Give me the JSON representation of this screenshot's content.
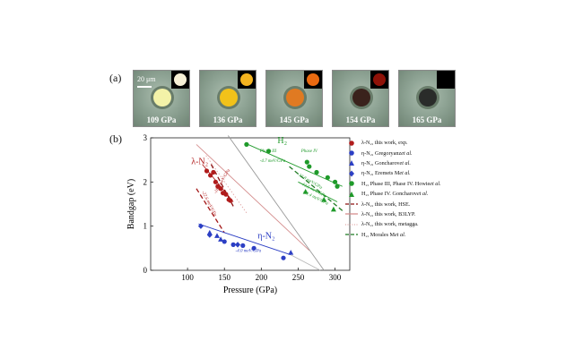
{
  "panel_a": {
    "label": "(a)",
    "scale_label": "20 μm",
    "images": [
      {
        "pressure": "109 GPa",
        "disk_color": "#f3f2a8",
        "glow_color": "#f6f0d6"
      },
      {
        "pressure": "136 GPa",
        "disk_color": "#f2c21a",
        "glow_color": "#f5b51f"
      },
      {
        "pressure": "145 GPa",
        "disk_color": "#e07a22",
        "glow_color": "#ea6a10"
      },
      {
        "pressure": "154 GPa",
        "disk_color": "#3a221c",
        "glow_color": "#8e1208"
      },
      {
        "pressure": "165 GPa",
        "disk_color": "#2a2c2a",
        "glow_color": "#000000"
      }
    ]
  },
  "panel_b": {
    "label": "(b)"
  },
  "chart_data": {
    "type": "scatter",
    "xlabel": "Pressure (GPa)",
    "ylabel": "Bandgap (eV)",
    "xlim": [
      50,
      320
    ],
    "ylim": [
      0,
      3
    ],
    "xticks": [
      "100",
      "150",
      "200",
      "250",
      "300"
    ],
    "yticks": [
      "0",
      "1",
      "2",
      "3"
    ],
    "series": [
      {
        "name": "λ-N₂, this work, exp.",
        "color": "#b01c1c",
        "marker": "circle",
        "legend_italic": "",
        "points": [
          [
            126,
            2.25
          ],
          [
            131,
            2.15
          ],
          [
            135,
            2.22
          ],
          [
            138,
            2.0
          ],
          [
            141,
            1.9
          ],
          [
            145,
            1.85
          ],
          [
            148,
            1.75
          ],
          [
            152,
            1.72
          ],
          [
            156,
            1.6
          ],
          [
            158,
            1.58
          ]
        ]
      },
      {
        "name": "η-N₂, Gregoryanz ",
        "color": "#2c3fc4",
        "marker": "circle",
        "legend_italic": "et al.",
        "points": [
          [
            150,
            0.65
          ],
          [
            162,
            0.58
          ],
          [
            175,
            0.56
          ],
          [
            190,
            0.5
          ],
          [
            230,
            0.28
          ]
        ]
      },
      {
        "name": "η-N₂, Goncharov ",
        "color": "#2c3fc4",
        "marker": "triangle",
        "legend_italic": "et al.",
        "points": [
          [
            130,
            0.85
          ],
          [
            140,
            0.78
          ],
          [
            145,
            0.7
          ],
          [
            240,
            0.4
          ]
        ]
      },
      {
        "name": "η-N₂, Eremets M ",
        "color": "#2c3fc4",
        "marker": "diamond",
        "legend_italic": "et al.",
        "points": [
          [
            118,
            1.0
          ],
          [
            130,
            0.8
          ],
          [
            168,
            0.58
          ]
        ]
      },
      {
        "name": "H₂, Phase III, Phase IV. Howie ",
        "color": "#1f9a2a",
        "marker": "circle",
        "legend_italic": "et al.",
        "points": [
          [
            180,
            2.85
          ],
          [
            210,
            2.7
          ],
          [
            262,
            2.45
          ],
          [
            265,
            2.35
          ],
          [
            275,
            2.22
          ],
          [
            290,
            2.1
          ],
          [
            300,
            2.0
          ],
          [
            303,
            1.9
          ]
        ]
      },
      {
        "name": "H₂, Phase IV. Goncharov ",
        "color": "#1f9a2a",
        "marker": "triangle",
        "legend_italic": "et al.",
        "points": [
          [
            260,
            1.78
          ],
          [
            285,
            1.6
          ],
          [
            298,
            1.38
          ]
        ]
      }
    ],
    "lines": [
      {
        "name": "λ-N₂, this work, HSE.",
        "color": "#8c1010",
        "style": "dashed",
        "legend_italic": "",
        "points": [
          [
            132,
            2.4
          ],
          [
            162,
            1.45
          ]
        ],
        "in_legend": true
      },
      {
        "name": "λ-N₂, this work, B3LYP.",
        "color": "#d58f8f",
        "style": "solid",
        "legend_italic": "",
        "points": [
          [
            112,
            2.85
          ],
          [
            265,
            0.45
          ]
        ],
        "in_legend": true
      },
      {
        "name": "λ-N₂, this work, metagga.",
        "color": "#e2a6a6",
        "style": "dotted",
        "legend_italic": "",
        "points": [
          [
            125,
            2.6
          ],
          [
            180,
            1.3
          ]
        ],
        "in_legend": true
      },
      {
        "name": "H₂, Morales M ",
        "color": "#1f7a23",
        "style": "dashed",
        "legend_italic": "et al.",
        "points": [
          [
            238,
            2.35
          ],
          [
            310,
            1.35
          ]
        ],
        "in_legend": true
      },
      {
        "name": "λ-N₂ fit (exp.)",
        "color": "#b01c1c",
        "style": "solid",
        "legend_italic": "",
        "points": [
          [
            120,
            2.4
          ],
          [
            162,
            1.55
          ]
        ],
        "in_legend": false
      },
      {
        "name": "λ-N₂ dashed guide",
        "color": "#a41818",
        "style": "dashed",
        "legend_italic": "",
        "points": [
          [
            112,
            1.85
          ],
          [
            150,
            0.85
          ]
        ],
        "in_legend": false
      },
      {
        "name": "η-N₂ fit",
        "color": "#2c3fc4",
        "style": "solid",
        "legend_italic": "",
        "points": [
          [
            115,
            1.05
          ],
          [
            240,
            0.35
          ]
        ],
        "in_legend": false
      },
      {
        "name": "N₂ trend",
        "color": "#9a9a9a",
        "style": "solid",
        "legend_italic": "",
        "points": [
          [
            155,
            3.05
          ],
          [
            285,
            0.0
          ]
        ],
        "in_legend": false
      },
      {
        "name": "η-N₂ extrapolation",
        "color": "#b8b8b8",
        "style": "solid",
        "legend_italic": "",
        "points": [
          [
            240,
            0.35
          ],
          [
            280,
            0.0
          ]
        ],
        "in_legend": false
      },
      {
        "name": "H₂ fit 1",
        "color": "#1f9a2a",
        "style": "solid",
        "legend_italic": "",
        "points": [
          [
            178,
            2.88
          ],
          [
            310,
            1.9
          ]
        ],
        "in_legend": false
      },
      {
        "name": "H₂ fit 2",
        "color": "#1f9a2a",
        "style": "solid",
        "legend_italic": "",
        "points": [
          [
            250,
            2.0
          ],
          [
            303,
            1.55
          ]
        ],
        "in_legend": false
      }
    ],
    "annotations": [
      {
        "text": "λ-N₂",
        "x": 105,
        "y": 2.4,
        "color": "#b01c1c",
        "size": "large"
      },
      {
        "text": "η-N₂",
        "x": 195,
        "y": 0.72,
        "color": "#2c3fc4",
        "size": "large"
      },
      {
        "text": "H₂",
        "x": 222,
        "y": 2.88,
        "color": "#1f9a2a",
        "size": "large"
      },
      {
        "text": "Phase III",
        "x": 198,
        "y": 2.68,
        "color": "#1f9a2a",
        "size": "small"
      },
      {
        "text": "Phase IV",
        "x": 254,
        "y": 2.68,
        "color": "#1f9a2a",
        "size": "small"
      },
      {
        "text": "-4.7 meV/GPa",
        "x": 198,
        "y": 2.45,
        "color": "#1f9a2a",
        "size": "small"
      },
      {
        "text": "-4.0 meV/GPa",
        "x": 165,
        "y": 0.42,
        "color": "#2c3fc4",
        "size": "small"
      }
    ],
    "rotated_annotations": [
      {
        "text": "-18.4 meV/GPa",
        "x": 148,
        "y": 2.0,
        "color": "#b01c1c",
        "angle": -60
      },
      {
        "text": "-22.6 meV/GPa",
        "x": 128,
        "y": 1.5,
        "color": "#b01c1c",
        "angle": 63
      },
      {
        "text": "-12.8 meV/GPa",
        "x": 265,
        "y": 2.0,
        "color": "#1f9a2a",
        "angle": 30
      },
      {
        "text": "-13.6 meV/GPa",
        "x": 270,
        "y": 1.8,
        "color": "#1f9a2a",
        "angle": 28
      },
      {
        "text": "-11.4 meV/GPa",
        "x": 273,
        "y": 1.62,
        "color": "#1f9a2a",
        "angle": 26
      }
    ]
  }
}
